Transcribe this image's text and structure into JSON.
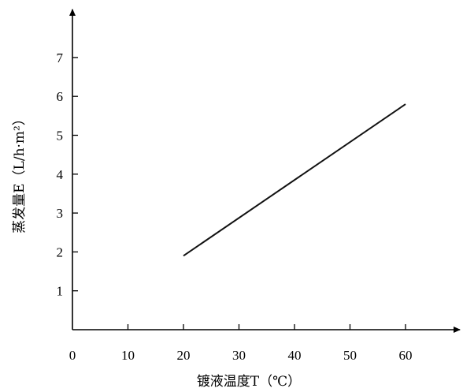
{
  "chart_data": {
    "type": "line",
    "title": "",
    "xlabel": "镀液温度T（℃）",
    "ylabel": "蒸发量E（L/h·m²）",
    "xlim": [
      0,
      60
    ],
    "ylim": [
      0,
      7
    ],
    "x_ticks": [
      "0",
      "10",
      "20",
      "30",
      "40",
      "50",
      "60"
    ],
    "y_ticks": [
      "1",
      "2",
      "3",
      "4",
      "5",
      "6",
      "7"
    ],
    "grid": false,
    "series": [
      {
        "x": [
          20,
          60
        ],
        "y": [
          1.9,
          5.8
        ]
      }
    ],
    "colors": {
      "line": "#111111",
      "axis": "#000000"
    }
  }
}
